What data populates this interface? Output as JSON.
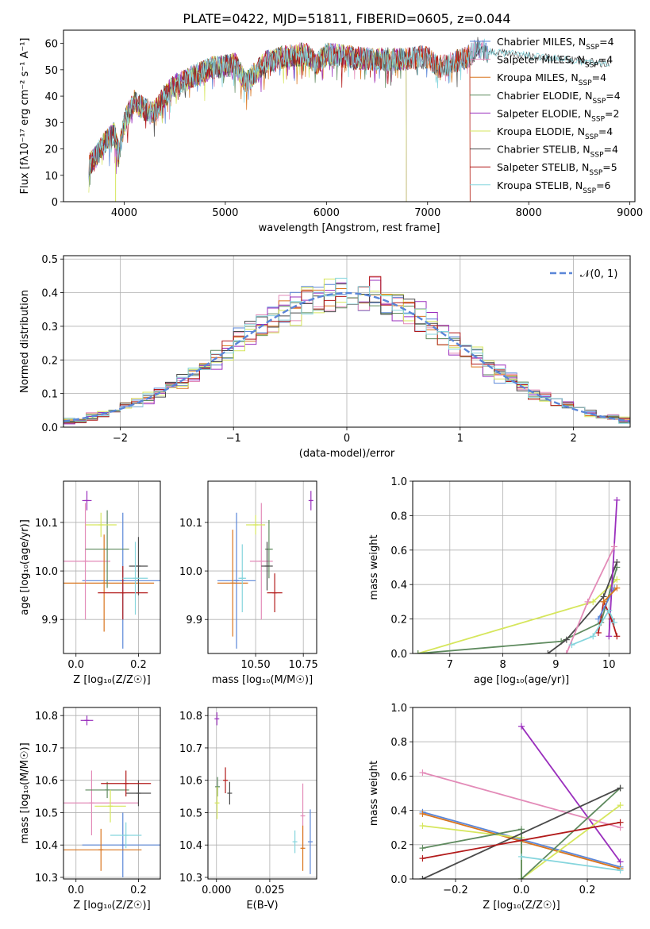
{
  "figure": {
    "title": "PLATE=0422, MJD=51811, FIBERID=0605, z=0.044"
  },
  "colors": {
    "ch_miles": "#5a86d8",
    "sa_miles": "#e38bb8",
    "kr_miles": "#d9741c",
    "ch_elodie": "#5e8a5e",
    "sa_elodie": "#9a2fbd",
    "kr_elodie": "#d6e65c",
    "ch_stelib": "#4a4a4a",
    "sa_stelib": "#b21a1a",
    "kr_stelib": "#85d5dd",
    "gauss": "#5a86d8"
  },
  "chart_data": [
    {
      "id": "spectrum",
      "type": "line",
      "xlabel": "wavelength [Angstrom, rest frame]",
      "ylabel": "Flux [fλ10⁻¹⁷ erg cm⁻² s⁻¹ A⁻¹]",
      "xlim": [
        3400,
        9050
      ],
      "ylim": [
        0,
        65
      ],
      "xticks": [
        4000,
        5000,
        6000,
        7000,
        8000,
        9000
      ],
      "yticks": [
        0,
        10,
        20,
        30,
        40,
        50,
        60
      ],
      "grid": false,
      "legend_position": "right",
      "continuum": {
        "x": [
          3650,
          3700,
          3800,
          3900,
          3950,
          4000,
          4100,
          4200,
          4300,
          4400,
          4500,
          4700,
          4900,
          5100,
          5200,
          5400,
          5600,
          5800,
          5900,
          6000,
          6200,
          6400,
          6600,
          6800,
          7000,
          7100,
          7200,
          7400,
          7500,
          7600
        ],
        "y": [
          14,
          16,
          22,
          26,
          18,
          30,
          38,
          35,
          34,
          40,
          44,
          48,
          51,
          52,
          45,
          53,
          55,
          56,
          52,
          56,
          55,
          54,
          54,
          54,
          55,
          51,
          52,
          55,
          58,
          57
        ]
      },
      "series": [
        {
          "name": "Chabrier MILES, N_SSP=4",
          "color_key": "ch_miles",
          "xmax": 7600
        },
        {
          "name": "Salpeter MILES, N_SSP=4",
          "color_key": "sa_miles",
          "xmax": 7600
        },
        {
          "name": "Kroupa MILES, N_SSP=4",
          "color_key": "kr_miles",
          "xmax": 7420
        },
        {
          "name": "Chabrier ELODIE, N_SSP=4",
          "color_key": "ch_elodie",
          "xmax": 6790
        },
        {
          "name": "Salpeter ELODIE, N_SSP=2",
          "color_key": "sa_elodie",
          "xmax": 6790
        },
        {
          "name": "Kroupa ELODIE, N_SSP=4",
          "color_key": "kr_elodie",
          "xmax": 6790
        },
        {
          "name": "Chabrier STELIB, N_SSP=4",
          "color_key": "ch_stelib",
          "xmax": 8800
        },
        {
          "name": "Salpeter STELIB, N_SSP=5",
          "color_key": "sa_stelib",
          "xmax": 7420
        },
        {
          "name": "Kroupa STELIB, N_SSP=6",
          "color_key": "kr_stelib",
          "xmax": 8800
        }
      ]
    },
    {
      "id": "residuals",
      "type": "line",
      "xlabel": "(data-model)/error",
      "ylabel": "Normed distribution",
      "xlim": [
        -2.5,
        2.5
      ],
      "ylim": [
        0,
        0.51
      ],
      "xticks": [
        -2,
        -1,
        0,
        1,
        2
      ],
      "yticks": [
        0.0,
        0.1,
        0.2,
        0.3,
        0.4,
        0.5
      ],
      "grid": true,
      "legend": {
        "label": "𝒩(0, 1)",
        "position": "top-right"
      },
      "bin_width": 0.1,
      "series_colors": [
        "ch_miles",
        "sa_miles",
        "kr_miles",
        "ch_elodie",
        "sa_elodie",
        "kr_elodie",
        "ch_stelib",
        "sa_stelib",
        "kr_stelib"
      ]
    },
    {
      "id": "age_vs_Z",
      "type": "scatter",
      "xlabel": "Z [log₁₀(Z/Z☉)]",
      "ylabel": "age [log₁₀(age/yr)]",
      "xlim": [
        -0.04,
        0.27
      ],
      "ylim": [
        9.83,
        10.185
      ],
      "xticks": [
        0.0,
        0.2
      ],
      "yticks": [
        9.9,
        10.0,
        10.1
      ],
      "grid": true,
      "points": [
        {
          "c": "ch_miles",
          "x": 0.15,
          "y": 9.98,
          "xerr": 0.13,
          "yerr": 0.14
        },
        {
          "c": "sa_miles",
          "x": 0.03,
          "y": 10.02,
          "xerr": 0.08,
          "yerr": 0.12
        },
        {
          "c": "kr_miles",
          "x": 0.09,
          "y": 9.975,
          "xerr": 0.16,
          "yerr": 0.1
        },
        {
          "c": "ch_elodie",
          "x": 0.1,
          "y": 10.045,
          "xerr": 0.07,
          "yerr": 0.08
        },
        {
          "c": "sa_elodie",
          "x": 0.035,
          "y": 10.145,
          "xerr": 0.015,
          "yerr": 0.02
        },
        {
          "c": "kr_elodie",
          "x": 0.08,
          "y": 10.095,
          "xerr": 0.05,
          "yerr": 0.025
        },
        {
          "c": "ch_stelib",
          "x": 0.2,
          "y": 10.01,
          "xerr": 0.03,
          "yerr": 0.06
        },
        {
          "c": "sa_stelib",
          "x": 0.15,
          "y": 9.955,
          "xerr": 0.08,
          "yerr": 0.055
        },
        {
          "c": "kr_stelib",
          "x": 0.19,
          "y": 9.985,
          "xerr": 0.04,
          "yerr": 0.075
        }
      ]
    },
    {
      "id": "age_vs_mass",
      "type": "scatter",
      "xlabel": "mass [log₁₀(M/M☉)]",
      "ylabel": "",
      "xlim": [
        10.25,
        10.82
      ],
      "ylim": [
        9.83,
        10.185
      ],
      "xticks": [
        10.5,
        10.75
      ],
      "yticks": [
        9.9,
        10.0,
        10.1
      ],
      "grid": true,
      "points": [
        {
          "c": "ch_miles",
          "x": 10.4,
          "y": 9.98,
          "xerr": 0.1,
          "yerr": 0.14
        },
        {
          "c": "sa_miles",
          "x": 10.53,
          "y": 10.02,
          "xerr": 0.06,
          "yerr": 0.12
        },
        {
          "c": "kr_miles",
          "x": 10.38,
          "y": 9.975,
          "xerr": 0.08,
          "yerr": 0.11
        },
        {
          "c": "ch_elodie",
          "x": 10.57,
          "y": 10.045,
          "xerr": 0.02,
          "yerr": 0.06
        },
        {
          "c": "sa_elodie",
          "x": 10.79,
          "y": 10.145,
          "xerr": 0.01,
          "yerr": 0.02
        },
        {
          "c": "kr_elodie",
          "x": 10.5,
          "y": 10.095,
          "xerr": 0.05,
          "yerr": 0.02
        },
        {
          "c": "ch_stelib",
          "x": 10.56,
          "y": 10.01,
          "xerr": 0.03,
          "yerr": 0.05
        },
        {
          "c": "sa_stelib",
          "x": 10.6,
          "y": 9.955,
          "xerr": 0.04,
          "yerr": 0.04
        },
        {
          "c": "kr_stelib",
          "x": 10.43,
          "y": 9.985,
          "xerr": 0.02,
          "yerr": 0.07
        }
      ]
    },
    {
      "id": "weight_vs_age",
      "type": "line",
      "xlabel": "age [log₁₀(age/yr)]",
      "ylabel": "mass weight",
      "xlim": [
        6.3,
        10.4
      ],
      "ylim": [
        0,
        1
      ],
      "xticks": [
        7,
        8,
        9,
        10
      ],
      "yticks": [
        0.0,
        0.2,
        0.4,
        0.6,
        0.8,
        1.0
      ],
      "grid": true,
      "lines": [
        {
          "c": "kr_elodie",
          "x": [
            6.4,
            9.7,
            10.15
          ],
          "y": [
            0.0,
            0.3,
            0.43
          ]
        },
        {
          "c": "ch_elodie",
          "x": [
            6.4,
            9.1,
            9.85,
            10.15
          ],
          "y": [
            0.0,
            0.07,
            0.18,
            0.5
          ]
        },
        {
          "c": "ch_stelib",
          "x": [
            8.85,
            9.2,
            9.9,
            10.15
          ],
          "y": [
            0.0,
            0.08,
            0.33,
            0.53
          ]
        },
        {
          "c": "sa_elodie",
          "x": [
            10.0,
            10.15
          ],
          "y": [
            0.1,
            0.89
          ]
        },
        {
          "c": "sa_miles",
          "x": [
            9.2,
            9.6,
            10.1
          ],
          "y": [
            0.0,
            0.3,
            0.62
          ]
        },
        {
          "c": "sa_stelib",
          "x": [
            9.8,
            9.9,
            10.05,
            10.15
          ],
          "y": [
            0.12,
            0.3,
            0.2,
            0.1
          ]
        },
        {
          "c": "kr_stelib",
          "x": [
            9.3,
            9.7,
            10.0,
            10.1
          ],
          "y": [
            0.05,
            0.1,
            0.25,
            0.18
          ]
        },
        {
          "c": "ch_miles",
          "x": [
            9.8,
            10.1
          ],
          "y": [
            0.2,
            0.38
          ]
        },
        {
          "c": "kr_miles",
          "x": [
            9.9,
            10.15
          ],
          "y": [
            0.3,
            0.38
          ]
        }
      ]
    },
    {
      "id": "mass_vs_Z",
      "type": "scatter",
      "xlabel": "Z [log₁₀(Z/Z☉)]",
      "ylabel": "mass [log₁₀(M/M☉)]",
      "xlim": [
        -0.04,
        0.27
      ],
      "ylim": [
        10.295,
        10.825
      ],
      "xticks": [
        0.0,
        0.2
      ],
      "yticks": [
        10.3,
        10.4,
        10.5,
        10.6,
        10.7,
        10.8
      ],
      "grid": true,
      "points": [
        {
          "c": "ch_miles",
          "x": 0.15,
          "y": 10.4,
          "xerr": 0.13,
          "yerr": 0.1
        },
        {
          "c": "sa_miles",
          "x": 0.05,
          "y": 10.53,
          "xerr": 0.15,
          "yerr": 0.1
        },
        {
          "c": "kr_miles",
          "x": 0.08,
          "y": 10.385,
          "xerr": 0.13,
          "yerr": 0.065
        },
        {
          "c": "ch_elodie",
          "x": 0.1,
          "y": 10.57,
          "xerr": 0.07,
          "yerr": 0.025
        },
        {
          "c": "sa_elodie",
          "x": 0.035,
          "y": 10.785,
          "xerr": 0.02,
          "yerr": 0.015
        },
        {
          "c": "kr_elodie",
          "x": 0.11,
          "y": 10.52,
          "xerr": 0.05,
          "yerr": 0.05
        },
        {
          "c": "ch_stelib",
          "x": 0.2,
          "y": 10.56,
          "xerr": 0.04,
          "yerr": 0.04
        },
        {
          "c": "sa_stelib",
          "x": 0.16,
          "y": 10.59,
          "xerr": 0.08,
          "yerr": 0.04
        },
        {
          "c": "kr_stelib",
          "x": 0.16,
          "y": 10.43,
          "xerr": 0.05,
          "yerr": 0.04
        }
      ]
    },
    {
      "id": "mass_vs_ebv",
      "type": "scatter",
      "xlabel": "E(B-V)",
      "ylabel": "",
      "xlim": [
        -0.004,
        0.047
      ],
      "ylim": [
        10.295,
        10.825
      ],
      "xticks": [
        0.0,
        0.025
      ],
      "xticklabels": [
        "0.000",
        "0.025"
      ],
      "yticks": [
        10.3,
        10.4,
        10.5,
        10.6,
        10.7,
        10.8
      ],
      "grid": true,
      "points": [
        {
          "c": "ch_miles",
          "x": 0.044,
          "y": 10.41,
          "xerr": 0,
          "yerr": 0.1
        },
        {
          "c": "sa_miles",
          "x": 0.0405,
          "y": 10.49,
          "xerr": 0,
          "yerr": 0.1
        },
        {
          "c": "kr_miles",
          "x": 0.0405,
          "y": 10.39,
          "xerr": 0,
          "yerr": 0.07
        },
        {
          "c": "ch_elodie",
          "x": 0.0005,
          "y": 10.58,
          "xerr": 0,
          "yerr": 0.03
        },
        {
          "c": "sa_elodie",
          "x": 0.0002,
          "y": 10.79,
          "xerr": 0,
          "yerr": 0.02
        },
        {
          "c": "kr_elodie",
          "x": 0.0003,
          "y": 10.53,
          "xerr": 0,
          "yerr": 0.05
        },
        {
          "c": "ch_stelib",
          "x": 0.0062,
          "y": 10.56,
          "xerr": 0,
          "yerr": 0.035
        },
        {
          "c": "sa_stelib",
          "x": 0.0042,
          "y": 10.6,
          "xerr": 0,
          "yerr": 0.04
        },
        {
          "c": "kr_stelib",
          "x": 0.0368,
          "y": 10.41,
          "xerr": 0,
          "yerr": 0.035
        }
      ]
    },
    {
      "id": "weight_vs_Z",
      "type": "line",
      "xlabel": "Z [log₁₀(Z/Z☉)]",
      "ylabel": "mass weight",
      "xlim": [
        -0.33,
        0.33
      ],
      "ylim": [
        0,
        1
      ],
      "xticks": [
        -0.2,
        0.0,
        0.2
      ],
      "yticks": [
        0.0,
        0.2,
        0.4,
        0.6,
        0.8,
        1.0
      ],
      "grid": true,
      "lines": [
        {
          "c": "sa_elodie",
          "x": [
            0.0,
            0.3
          ],
          "y": [
            0.89,
            0.1
          ]
        },
        {
          "c": "sa_miles",
          "x": [
            -0.3,
            0.3
          ],
          "y": [
            0.62,
            0.3
          ]
        },
        {
          "c": "ch_miles",
          "x": [
            -0.3,
            0.3
          ],
          "y": [
            0.39,
            0.07
          ]
        },
        {
          "c": "kr_miles",
          "x": [
            -0.3,
            0.3
          ],
          "y": [
            0.38,
            0.06
          ]
        },
        {
          "c": "kr_elodie",
          "x": [
            -0.3,
            0.0,
            0.0,
            0.3
          ],
          "y": [
            0.31,
            0.24,
            0.0,
            0.43
          ]
        },
        {
          "c": "ch_elodie",
          "x": [
            -0.3,
            0.0,
            0.0,
            0.3
          ],
          "y": [
            0.18,
            0.29,
            0.0,
            0.53
          ]
        },
        {
          "c": "ch_stelib",
          "x": [
            -0.3,
            -0.3,
            0.3
          ],
          "y": [
            0.0,
            0.0,
            0.53
          ]
        },
        {
          "c": "sa_stelib",
          "x": [
            -0.3,
            0.3
          ],
          "y": [
            0.12,
            0.33
          ]
        },
        {
          "c": "kr_stelib",
          "x": [
            0.0,
            0.3
          ],
          "y": [
            0.13,
            0.05
          ]
        }
      ]
    }
  ]
}
